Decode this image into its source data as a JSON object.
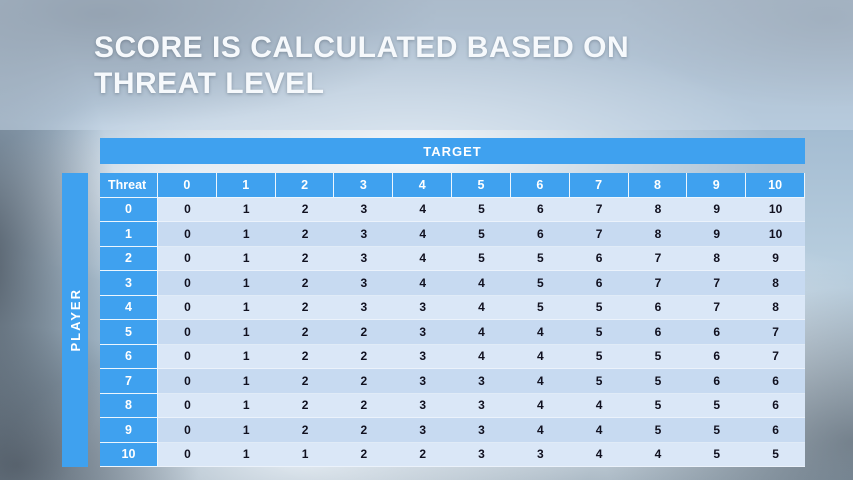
{
  "slide": {
    "title_lines": [
      "SCORE IS CALCULATED BASED ON",
      "THREAT LEVEL"
    ]
  },
  "matrix": {
    "target_label": "TARGET",
    "player_label": "PLAYER",
    "corner_label": "Threat",
    "col_headers": [
      "0",
      "1",
      "2",
      "3",
      "4",
      "5",
      "6",
      "7",
      "8",
      "9",
      "10"
    ],
    "rows": [
      {
        "header": "0",
        "cells": [
          "0",
          "1",
          "2",
          "3",
          "4",
          "5",
          "6",
          "7",
          "8",
          "9",
          "10"
        ]
      },
      {
        "header": "1",
        "cells": [
          "0",
          "1",
          "2",
          "3",
          "4",
          "5",
          "6",
          "7",
          "8",
          "9",
          "10"
        ]
      },
      {
        "header": "2",
        "cells": [
          "0",
          "1",
          "2",
          "3",
          "4",
          "5",
          "5",
          "6",
          "7",
          "8",
          "9"
        ]
      },
      {
        "header": "3",
        "cells": [
          "0",
          "1",
          "2",
          "3",
          "4",
          "4",
          "5",
          "6",
          "7",
          "7",
          "8"
        ]
      },
      {
        "header": "4",
        "cells": [
          "0",
          "1",
          "2",
          "3",
          "3",
          "4",
          "5",
          "5",
          "6",
          "7",
          "8"
        ]
      },
      {
        "header": "5",
        "cells": [
          "0",
          "1",
          "2",
          "2",
          "3",
          "4",
          "4",
          "5",
          "6",
          "6",
          "7"
        ]
      },
      {
        "header": "6",
        "cells": [
          "0",
          "1",
          "2",
          "2",
          "3",
          "4",
          "4",
          "5",
          "5",
          "6",
          "7"
        ]
      },
      {
        "header": "7",
        "cells": [
          "0",
          "1",
          "2",
          "2",
          "3",
          "3",
          "4",
          "5",
          "5",
          "6",
          "6"
        ]
      },
      {
        "header": "8",
        "cells": [
          "0",
          "1",
          "2",
          "2",
          "3",
          "3",
          "4",
          "4",
          "5",
          "5",
          "6"
        ]
      },
      {
        "header": "9",
        "cells": [
          "0",
          "1",
          "2",
          "2",
          "3",
          "3",
          "4",
          "4",
          "5",
          "5",
          "6"
        ]
      },
      {
        "header": "10",
        "cells": [
          "0",
          "1",
          "1",
          "2",
          "2",
          "3",
          "3",
          "4",
          "4",
          "5",
          "5"
        ]
      }
    ]
  },
  "colors": {
    "accent_blue": "#3FA1EF",
    "row_light": "#DAE7F7",
    "row_dark": "#C7DAF1",
    "cell_text": "#10101F",
    "header_text": "#FFFFFF"
  }
}
